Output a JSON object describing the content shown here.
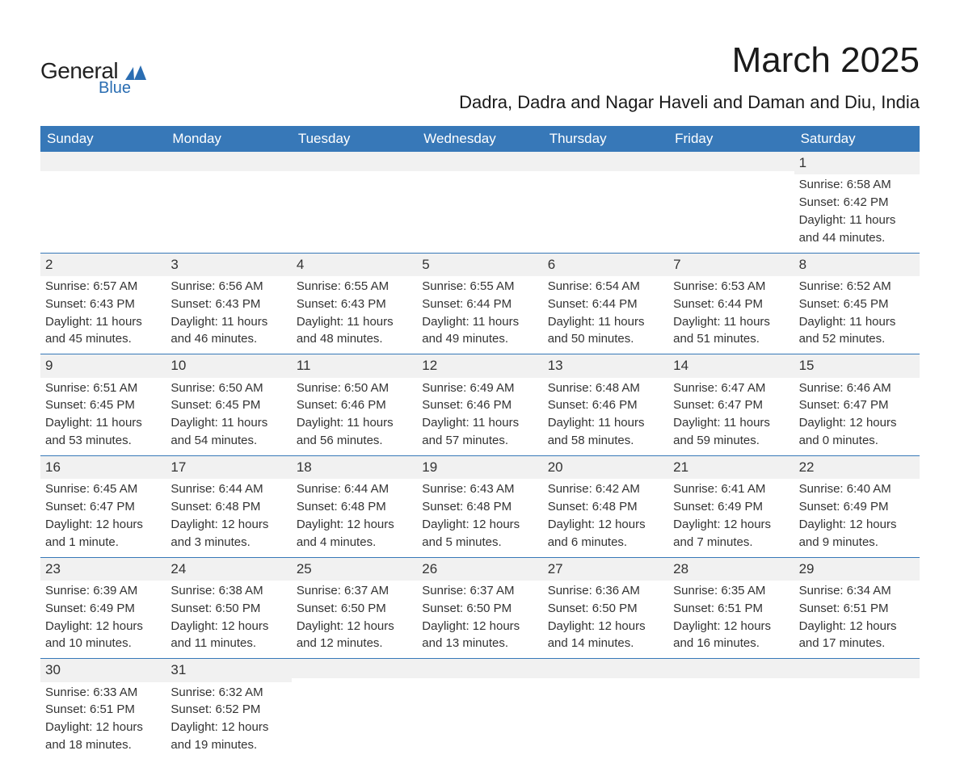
{
  "logo": {
    "main": "General",
    "sub": "Blue",
    "shape_color": "#2a6db2"
  },
  "title": "March 2025",
  "location": "Dadra, Dadra and Nagar Haveli and Daman and Diu, India",
  "colors": {
    "header_bg": "#3778b8",
    "header_text": "#ffffff",
    "row_border": "#3778b8",
    "day_bg": "#f1f1f1",
    "text": "#333333",
    "page_bg": "#ffffff"
  },
  "day_headers": [
    "Sunday",
    "Monday",
    "Tuesday",
    "Wednesday",
    "Thursday",
    "Friday",
    "Saturday"
  ],
  "weeks": [
    [
      null,
      null,
      null,
      null,
      null,
      null,
      {
        "n": "1",
        "sunrise": "Sunrise: 6:58 AM",
        "sunset": "Sunset: 6:42 PM",
        "daylight1": "Daylight: 11 hours",
        "daylight2": "and 44 minutes."
      }
    ],
    [
      {
        "n": "2",
        "sunrise": "Sunrise: 6:57 AM",
        "sunset": "Sunset: 6:43 PM",
        "daylight1": "Daylight: 11 hours",
        "daylight2": "and 45 minutes."
      },
      {
        "n": "3",
        "sunrise": "Sunrise: 6:56 AM",
        "sunset": "Sunset: 6:43 PM",
        "daylight1": "Daylight: 11 hours",
        "daylight2": "and 46 minutes."
      },
      {
        "n": "4",
        "sunrise": "Sunrise: 6:55 AM",
        "sunset": "Sunset: 6:43 PM",
        "daylight1": "Daylight: 11 hours",
        "daylight2": "and 48 minutes."
      },
      {
        "n": "5",
        "sunrise": "Sunrise: 6:55 AM",
        "sunset": "Sunset: 6:44 PM",
        "daylight1": "Daylight: 11 hours",
        "daylight2": "and 49 minutes."
      },
      {
        "n": "6",
        "sunrise": "Sunrise: 6:54 AM",
        "sunset": "Sunset: 6:44 PM",
        "daylight1": "Daylight: 11 hours",
        "daylight2": "and 50 minutes."
      },
      {
        "n": "7",
        "sunrise": "Sunrise: 6:53 AM",
        "sunset": "Sunset: 6:44 PM",
        "daylight1": "Daylight: 11 hours",
        "daylight2": "and 51 minutes."
      },
      {
        "n": "8",
        "sunrise": "Sunrise: 6:52 AM",
        "sunset": "Sunset: 6:45 PM",
        "daylight1": "Daylight: 11 hours",
        "daylight2": "and 52 minutes."
      }
    ],
    [
      {
        "n": "9",
        "sunrise": "Sunrise: 6:51 AM",
        "sunset": "Sunset: 6:45 PM",
        "daylight1": "Daylight: 11 hours",
        "daylight2": "and 53 minutes."
      },
      {
        "n": "10",
        "sunrise": "Sunrise: 6:50 AM",
        "sunset": "Sunset: 6:45 PM",
        "daylight1": "Daylight: 11 hours",
        "daylight2": "and 54 minutes."
      },
      {
        "n": "11",
        "sunrise": "Sunrise: 6:50 AM",
        "sunset": "Sunset: 6:46 PM",
        "daylight1": "Daylight: 11 hours",
        "daylight2": "and 56 minutes."
      },
      {
        "n": "12",
        "sunrise": "Sunrise: 6:49 AM",
        "sunset": "Sunset: 6:46 PM",
        "daylight1": "Daylight: 11 hours",
        "daylight2": "and 57 minutes."
      },
      {
        "n": "13",
        "sunrise": "Sunrise: 6:48 AM",
        "sunset": "Sunset: 6:46 PM",
        "daylight1": "Daylight: 11 hours",
        "daylight2": "and 58 minutes."
      },
      {
        "n": "14",
        "sunrise": "Sunrise: 6:47 AM",
        "sunset": "Sunset: 6:47 PM",
        "daylight1": "Daylight: 11 hours",
        "daylight2": "and 59 minutes."
      },
      {
        "n": "15",
        "sunrise": "Sunrise: 6:46 AM",
        "sunset": "Sunset: 6:47 PM",
        "daylight1": "Daylight: 12 hours",
        "daylight2": "and 0 minutes."
      }
    ],
    [
      {
        "n": "16",
        "sunrise": "Sunrise: 6:45 AM",
        "sunset": "Sunset: 6:47 PM",
        "daylight1": "Daylight: 12 hours",
        "daylight2": "and 1 minute."
      },
      {
        "n": "17",
        "sunrise": "Sunrise: 6:44 AM",
        "sunset": "Sunset: 6:48 PM",
        "daylight1": "Daylight: 12 hours",
        "daylight2": "and 3 minutes."
      },
      {
        "n": "18",
        "sunrise": "Sunrise: 6:44 AM",
        "sunset": "Sunset: 6:48 PM",
        "daylight1": "Daylight: 12 hours",
        "daylight2": "and 4 minutes."
      },
      {
        "n": "19",
        "sunrise": "Sunrise: 6:43 AM",
        "sunset": "Sunset: 6:48 PM",
        "daylight1": "Daylight: 12 hours",
        "daylight2": "and 5 minutes."
      },
      {
        "n": "20",
        "sunrise": "Sunrise: 6:42 AM",
        "sunset": "Sunset: 6:48 PM",
        "daylight1": "Daylight: 12 hours",
        "daylight2": "and 6 minutes."
      },
      {
        "n": "21",
        "sunrise": "Sunrise: 6:41 AM",
        "sunset": "Sunset: 6:49 PM",
        "daylight1": "Daylight: 12 hours",
        "daylight2": "and 7 minutes."
      },
      {
        "n": "22",
        "sunrise": "Sunrise: 6:40 AM",
        "sunset": "Sunset: 6:49 PM",
        "daylight1": "Daylight: 12 hours",
        "daylight2": "and 9 minutes."
      }
    ],
    [
      {
        "n": "23",
        "sunrise": "Sunrise: 6:39 AM",
        "sunset": "Sunset: 6:49 PM",
        "daylight1": "Daylight: 12 hours",
        "daylight2": "and 10 minutes."
      },
      {
        "n": "24",
        "sunrise": "Sunrise: 6:38 AM",
        "sunset": "Sunset: 6:50 PM",
        "daylight1": "Daylight: 12 hours",
        "daylight2": "and 11 minutes."
      },
      {
        "n": "25",
        "sunrise": "Sunrise: 6:37 AM",
        "sunset": "Sunset: 6:50 PM",
        "daylight1": "Daylight: 12 hours",
        "daylight2": "and 12 minutes."
      },
      {
        "n": "26",
        "sunrise": "Sunrise: 6:37 AM",
        "sunset": "Sunset: 6:50 PM",
        "daylight1": "Daylight: 12 hours",
        "daylight2": "and 13 minutes."
      },
      {
        "n": "27",
        "sunrise": "Sunrise: 6:36 AM",
        "sunset": "Sunset: 6:50 PM",
        "daylight1": "Daylight: 12 hours",
        "daylight2": "and 14 minutes."
      },
      {
        "n": "28",
        "sunrise": "Sunrise: 6:35 AM",
        "sunset": "Sunset: 6:51 PM",
        "daylight1": "Daylight: 12 hours",
        "daylight2": "and 16 minutes."
      },
      {
        "n": "29",
        "sunrise": "Sunrise: 6:34 AM",
        "sunset": "Sunset: 6:51 PM",
        "daylight1": "Daylight: 12 hours",
        "daylight2": "and 17 minutes."
      }
    ],
    [
      {
        "n": "30",
        "sunrise": "Sunrise: 6:33 AM",
        "sunset": "Sunset: 6:51 PM",
        "daylight1": "Daylight: 12 hours",
        "daylight2": "and 18 minutes."
      },
      {
        "n": "31",
        "sunrise": "Sunrise: 6:32 AM",
        "sunset": "Sunset: 6:52 PM",
        "daylight1": "Daylight: 12 hours",
        "daylight2": "and 19 minutes."
      },
      null,
      null,
      null,
      null,
      null
    ]
  ]
}
